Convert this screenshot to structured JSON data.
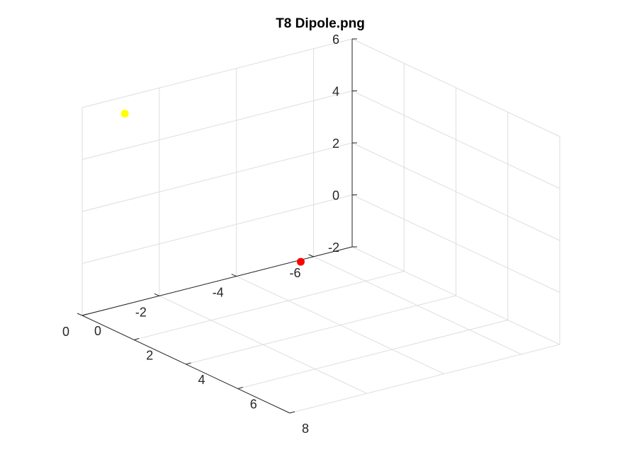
{
  "chart_data": {
    "type": "scatter",
    "projection": "3d",
    "title": "T8 Dipole.png",
    "xlabel": "",
    "ylabel": "",
    "zlabel": "",
    "grid": true,
    "xlim": [
      0,
      8
    ],
    "ylim": [
      -7,
      0
    ],
    "zlim": [
      -2,
      6
    ],
    "x_ticks": [
      0,
      2,
      4,
      6,
      8
    ],
    "y_ticks": [
      0,
      -2,
      -4,
      -6
    ],
    "z_ticks": [
      -2,
      0,
      2,
      4,
      6
    ],
    "x_tick_labels": [
      "0",
      "2",
      "4",
      "6",
      "8"
    ],
    "y_tick_labels": [
      "0",
      "-2",
      "-4",
      "-6"
    ],
    "z_tick_labels": [
      "-2",
      "0",
      "2",
      "4",
      "6"
    ],
    "points": [
      {
        "x": 0.1,
        "y": -5.6,
        "z": -2,
        "color": "#ff0000"
      },
      {
        "x": 0.9,
        "y": -0.5,
        "z": 6,
        "color": "#ffff00"
      }
    ]
  }
}
